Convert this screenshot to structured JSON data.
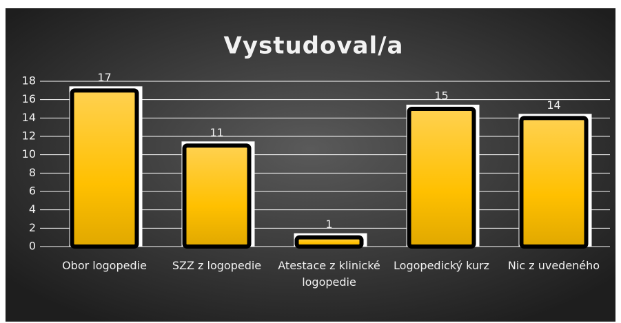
{
  "chart_data": {
    "type": "bar",
    "title": "Vystudoval/a",
    "categories": [
      "Obor logopedie",
      "SZZ z logopedie",
      "Atestace z klinické logopedie",
      "Logopedický kurz",
      "Nic z uvedeného"
    ],
    "values": [
      17,
      11,
      1,
      15,
      14
    ],
    "color": "#ffc72c",
    "ylim": [
      0,
      18
    ],
    "yticks": [
      0,
      2,
      4,
      6,
      8,
      10,
      12,
      14,
      16,
      18
    ],
    "grid": true
  }
}
